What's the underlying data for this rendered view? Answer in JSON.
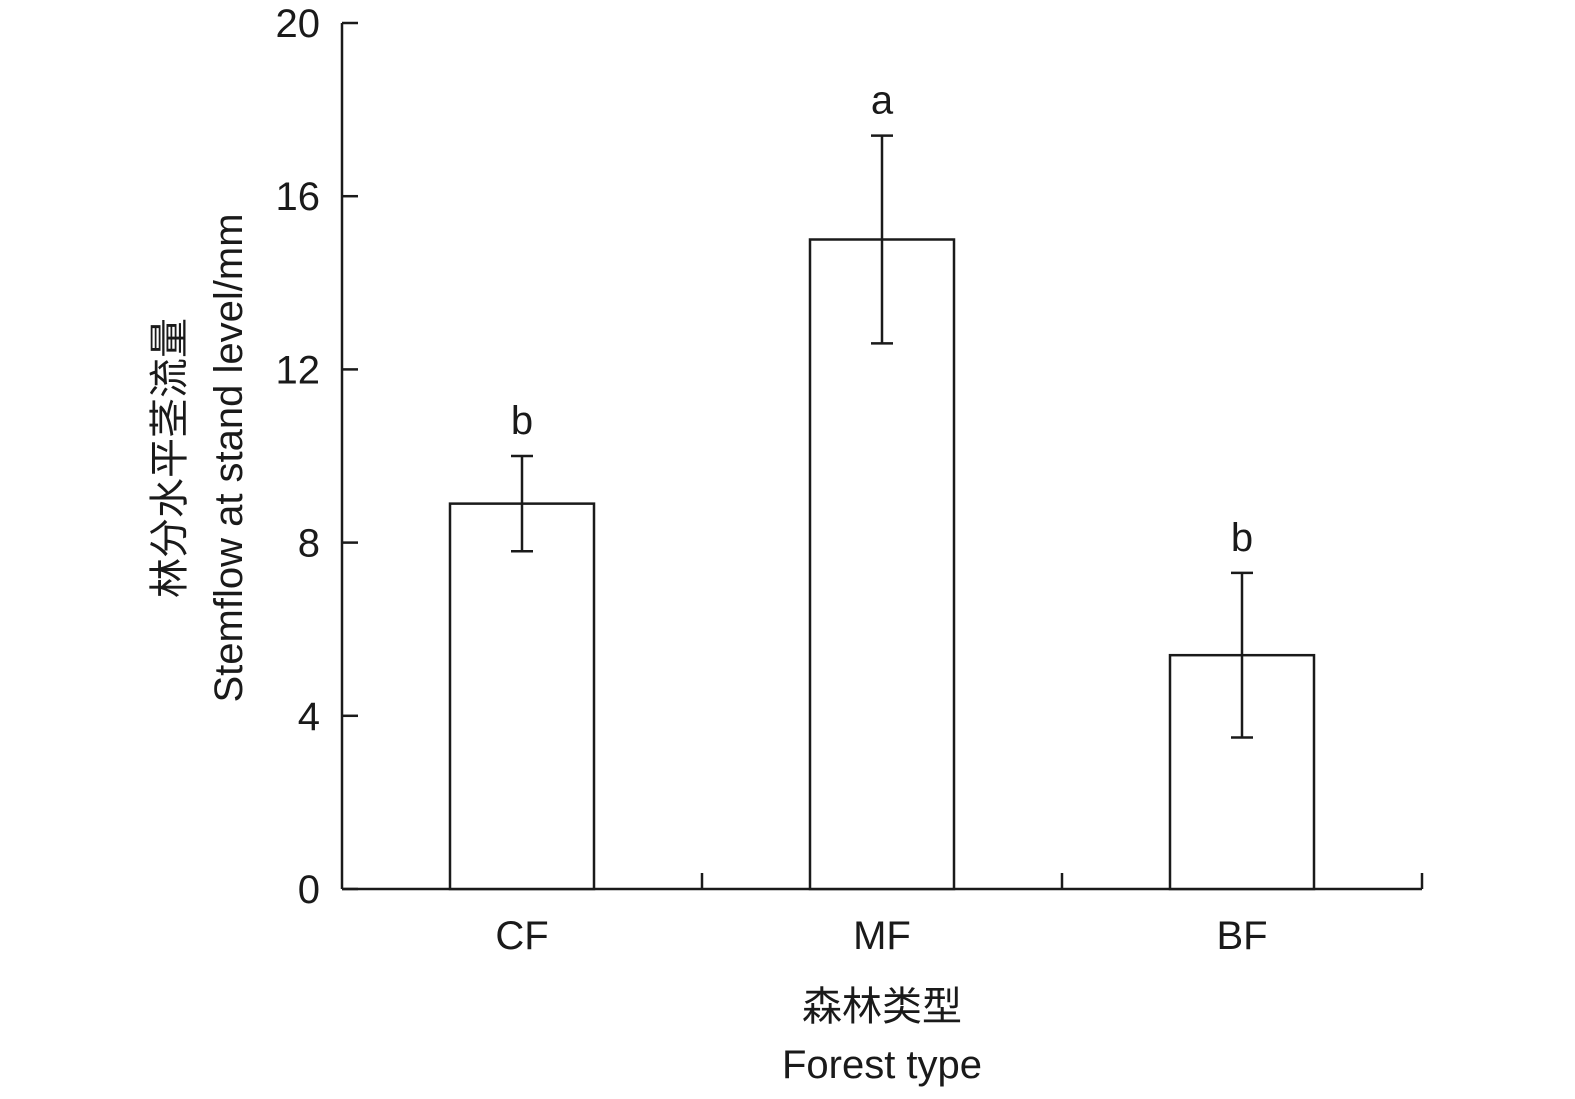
{
  "chart_data": {
    "type": "bar",
    "categories": [
      "CF",
      "MF",
      "BF"
    ],
    "values": [
      8.9,
      15.0,
      5.4
    ],
    "errors": [
      1.1,
      2.4,
      1.9
    ],
    "significance": [
      "b",
      "a",
      "b"
    ],
    "ylim": [
      0,
      20
    ],
    "yticks": [
      "0",
      "4",
      "8",
      "12",
      "16",
      "20"
    ],
    "ylabel_zh": "林分水平茎流量",
    "ylabel": "Stemflow at stand level/mm",
    "xlabel_zh": "森林类型",
    "xlabel": "Forest type",
    "grid": false,
    "bar_fill": "#ffffff",
    "line_color": "#1a1a1a"
  }
}
